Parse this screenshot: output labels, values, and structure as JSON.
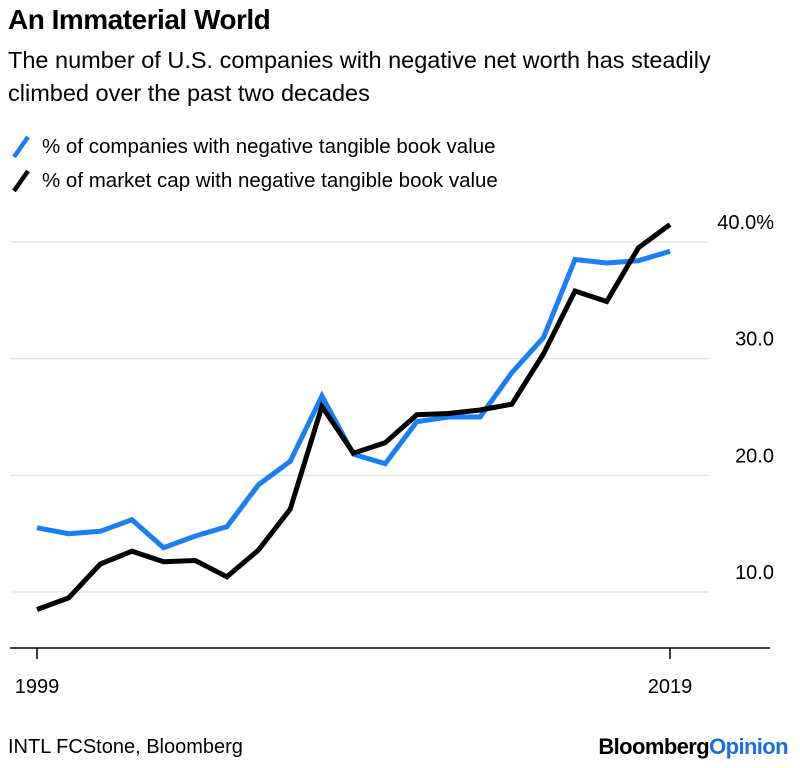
{
  "header": {
    "title": "An Immaterial World",
    "subtitle": "The number of U.S. companies with negative net worth has steadily climbed over the past two decades"
  },
  "footer": {
    "source": "INTL FCStone, Bloomberg",
    "brand_part1": "Bloomberg",
    "brand_part2": "Opinion"
  },
  "colors": {
    "blue": "#1a7ff5",
    "black": "#000000",
    "grid": "#e6e6e6",
    "brand_accent": "#1a6fe0"
  },
  "chart_data": {
    "type": "line",
    "title": "An Immaterial World",
    "subtitle": "The number of U.S. companies with negative net worth has steadily climbed over the past two decades",
    "x": [
      1999,
      2000,
      2001,
      2002,
      2003,
      2004,
      2005,
      2006,
      2007,
      2008,
      2009,
      2010,
      2011,
      2012,
      2013,
      2014,
      2015,
      2016,
      2017,
      2018,
      2019
    ],
    "x_tick_labels": [
      "1999",
      "2019"
    ],
    "y_tick_labels": [
      "40.0%",
      "30.0",
      "20.0",
      "10.0"
    ],
    "y_ticks": [
      40,
      30,
      20,
      10
    ],
    "ylim": [
      4.5,
      45
    ],
    "grid": true,
    "legend_position": "top-left",
    "series": [
      {
        "name": "% of companies with negative tangible book value",
        "color": "#1a7ff5",
        "values": [
          15.5,
          15.0,
          15.2,
          16.2,
          13.8,
          14.8,
          15.6,
          19.2,
          21.2,
          26.8,
          21.8,
          21.0,
          24.6,
          25.0,
          25.0,
          28.8,
          31.8,
          38.5,
          38.2,
          38.4,
          39.2
        ]
      },
      {
        "name": "% of market cap with negative tangible book value",
        "color": "#000000",
        "values": [
          8.5,
          9.5,
          12.4,
          13.5,
          12.6,
          12.7,
          11.3,
          13.6,
          17.1,
          25.9,
          21.9,
          22.8,
          25.2,
          25.3,
          25.6,
          26.1,
          30.4,
          35.8,
          34.9,
          39.5,
          41.5
        ]
      }
    ]
  }
}
